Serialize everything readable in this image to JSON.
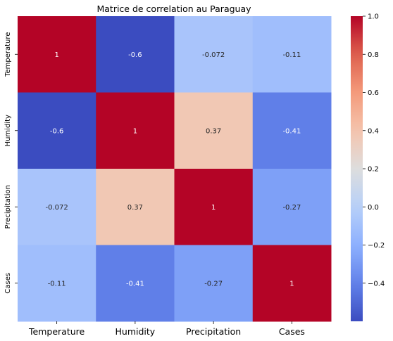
{
  "chart_data": {
    "type": "heatmap",
    "title": "Matrice de correlation au Paraguay",
    "x_labels": [
      "Temperature",
      "Humidity",
      "Precipitation",
      "Cases"
    ],
    "y_labels": [
      "Temperature",
      "Humidity",
      "Precipitation",
      "Cases"
    ],
    "values": [
      [
        1,
        -0.6,
        -0.072,
        -0.11
      ],
      [
        -0.6,
        1,
        0.37,
        -0.41
      ],
      [
        -0.072,
        0.37,
        1,
        -0.27
      ],
      [
        -0.11,
        -0.41,
        -0.27,
        1
      ]
    ],
    "annotations": [
      [
        "1",
        "-0.6",
        "-0.072",
        "-0.11"
      ],
      [
        "-0.6",
        "1",
        "0.37",
        "-0.41"
      ],
      [
        "-0.072",
        "0.37",
        "1",
        "-0.27"
      ],
      [
        "-0.11",
        "-0.41",
        "-0.27",
        "1"
      ]
    ],
    "colormap": "coolwarm",
    "vmin": -0.6,
    "vmax": 1.0,
    "colorbar_ticks": [
      "1.0",
      "0.8",
      "0.6",
      "0.4",
      "0.2",
      "0.0",
      "−0.2",
      "−0.4"
    ],
    "colorbar_tick_values": [
      1.0,
      0.8,
      0.6,
      0.4,
      0.2,
      0.0,
      -0.2,
      -0.4
    ]
  }
}
